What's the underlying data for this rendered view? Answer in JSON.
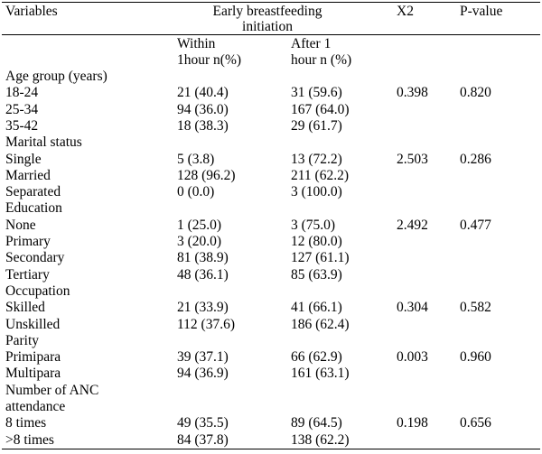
{
  "table": {
    "header": {
      "variables": "Variables",
      "group_line1": "Early breastfeeding",
      "group_line2": "initiation",
      "x2": "X2",
      "pvalue": "P-value",
      "within_line1": "Within",
      "within_line2": "1hour n(%)",
      "after_line1": "After 1",
      "after_line2": "hour n (%)"
    },
    "rows": [
      {
        "label": "Age group (years)",
        "within": "",
        "after": "",
        "x2": "",
        "p": ""
      },
      {
        "label": "18-24",
        "within": "21 (40.4)",
        "after": "31 (59.6)",
        "x2": "0.398",
        "p": "0.820"
      },
      {
        "label": "25-34",
        "within": "94 (36.0)",
        "after": "167 (64.0)",
        "x2": "",
        "p": ""
      },
      {
        "label": "35-42",
        "within": "18 (38.3)",
        "after": "29 (61.7)",
        "x2": "",
        "p": ""
      },
      {
        "label": "Marital status",
        "within": "",
        "after": "",
        "x2": "",
        "p": ""
      },
      {
        "label": "Single",
        "within": "5 (3.8)",
        "after": "13 (72.2)",
        "x2": "2.503",
        "p": "0.286"
      },
      {
        "label": "Married",
        "within": "128 (96.2)",
        "after": "211 (62.2)",
        "x2": "",
        "p": ""
      },
      {
        "label": "Separated",
        "within": "0 (0.0)",
        "after": "3 (100.0)",
        "x2": "",
        "p": ""
      },
      {
        "label": "Education",
        "within": "",
        "after": "",
        "x2": "",
        "p": ""
      },
      {
        "label": "None",
        "within": "1 (25.0)",
        "after": "3 (75.0)",
        "x2": "2.492",
        "p": "0.477"
      },
      {
        "label": "Primary",
        "within": "3 (20.0)",
        "after": "12 (80.0)",
        "x2": "",
        "p": ""
      },
      {
        "label": "Secondary",
        "within": "81 (38.9)",
        "after": "127 (61.1)",
        "x2": "",
        "p": ""
      },
      {
        "label": "Tertiary",
        "within": "48 (36.1)",
        "after": "85 (63.9)",
        "x2": "",
        "p": ""
      },
      {
        "label": "Occupation",
        "within": "",
        "after": "",
        "x2": "",
        "p": ""
      },
      {
        "label": "Skilled",
        "within": "21 (33.9)",
        "after": "41 (66.1)",
        "x2": "0.304",
        "p": "0.582"
      },
      {
        "label": "Unskilled",
        "within": "112 (37.6)",
        "after": "186 (62.4)",
        "x2": "",
        "p": ""
      },
      {
        "label": "Parity",
        "within": "",
        "after": "",
        "x2": "",
        "p": ""
      },
      {
        "label": "Primipara",
        "within": "39 (37.1)",
        "after": "66 (62.9)",
        "x2": "0.003",
        "p": "0.960"
      },
      {
        "label": "Multipara",
        "within": "94 (36.9)",
        "after": "161 (63.1)",
        "x2": "",
        "p": ""
      },
      {
        "label": "Number of ANC",
        "within": "",
        "after": "",
        "x2": "",
        "p": ""
      },
      {
        "label": "attendance",
        "within": "",
        "after": "",
        "x2": "",
        "p": ""
      },
      {
        "label": "8 times",
        "within": "49 (35.5)",
        "after": "89 (64.5)",
        "x2": "0.198",
        "p": "0.656"
      },
      {
        "label": ">8 times",
        "within": "84 (37.8)",
        "after": "138 (62.2)",
        "x2": "",
        "p": ""
      }
    ]
  }
}
